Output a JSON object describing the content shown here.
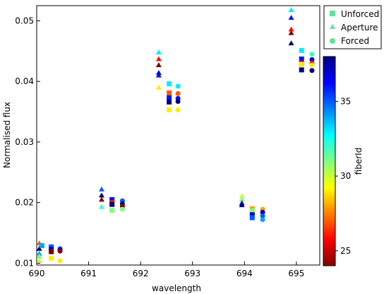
{
  "chart_data": {
    "type": "scatter",
    "xlabel": "wavelength",
    "ylabel": "Normalised flux",
    "xlim": [
      690.0,
      695.45
    ],
    "ylim": [
      0.0097,
      0.0525
    ],
    "xticks": [
      690,
      691,
      692,
      693,
      694,
      695
    ],
    "xtick_labels": [
      "690",
      "691",
      "692",
      "693",
      "694",
      "695"
    ],
    "yticks": [
      0.01,
      0.02,
      0.03,
      0.04,
      0.05
    ],
    "ytick_labels": [
      "0.01",
      "0.02",
      "0.03",
      "0.04",
      "0.05"
    ],
    "grid": false,
    "legend": {
      "placement": "top-right outside",
      "entries": [
        {
          "label": "Unforced",
          "marker": "square",
          "color": "#66e099"
        },
        {
          "label": "Aperture",
          "marker": "triangle",
          "color": "#66e099"
        },
        {
          "label": "Forced",
          "marker": "circle",
          "color": "#66e099"
        }
      ]
    },
    "colorbar": {
      "label": "fiberId",
      "range": [
        24,
        38
      ],
      "ticks": [
        25,
        30,
        35
      ],
      "tick_labels": [
        "25",
        "30",
        "35"
      ],
      "colormap": "jet"
    },
    "series": [
      {
        "name": "Aperture",
        "marker": "triangle",
        "points": [
          {
            "x": 690.05,
            "y": 0.0133,
            "fiberId": 27
          },
          {
            "x": 690.05,
            "y": 0.0124,
            "fiberId": 38
          },
          {
            "x": 690.05,
            "y": 0.0116,
            "fiberId": 34
          },
          {
            "x": 690.05,
            "y": 0.0111,
            "fiberId": 31
          },
          {
            "x": 690.05,
            "y": 0.0104,
            "fiberId": 30
          },
          {
            "x": 691.25,
            "y": 0.0222,
            "fiberId": 35
          },
          {
            "x": 691.25,
            "y": 0.0212,
            "fiberId": 38
          },
          {
            "x": 691.25,
            "y": 0.0205,
            "fiberId": 24
          },
          {
            "x": 691.25,
            "y": 0.0193,
            "fiberId": 32
          },
          {
            "x": 692.35,
            "y": 0.0448,
            "fiberId": 33
          },
          {
            "x": 692.35,
            "y": 0.0437,
            "fiberId": 26
          },
          {
            "x": 692.35,
            "y": 0.0427,
            "fiberId": 24
          },
          {
            "x": 692.35,
            "y": 0.0414,
            "fiberId": 37
          },
          {
            "x": 692.35,
            "y": 0.041,
            "fiberId": 36
          },
          {
            "x": 692.35,
            "y": 0.039,
            "fiberId": 29
          },
          {
            "x": 693.95,
            "y": 0.0211,
            "fiberId": 30
          },
          {
            "x": 693.95,
            "y": 0.0205,
            "fiberId": 31
          },
          {
            "x": 693.95,
            "y": 0.0199,
            "fiberId": 37
          },
          {
            "x": 693.95,
            "y": 0.0196,
            "fiberId": 38
          },
          {
            "x": 694.9,
            "y": 0.0518,
            "fiberId": 33
          },
          {
            "x": 694.9,
            "y": 0.0505,
            "fiberId": 36
          },
          {
            "x": 694.9,
            "y": 0.0486,
            "fiberId": 26
          },
          {
            "x": 694.9,
            "y": 0.048,
            "fiberId": 24
          },
          {
            "x": 694.9,
            "y": 0.0463,
            "fiberId": 38
          }
        ]
      },
      {
        "name": "Unforced",
        "marker": "square",
        "points": [
          {
            "x": 690.1,
            "y": 0.0129,
            "fiberId": 34
          },
          {
            "x": 690.28,
            "y": 0.0127,
            "fiberId": 35
          },
          {
            "x": 690.28,
            "y": 0.0123,
            "fiberId": 37
          },
          {
            "x": 690.28,
            "y": 0.0119,
            "fiberId": 24
          },
          {
            "x": 690.28,
            "y": 0.0108,
            "fiberId": 29
          },
          {
            "x": 691.45,
            "y": 0.0205,
            "fiberId": 36
          },
          {
            "x": 691.45,
            "y": 0.02,
            "fiberId": 26
          },
          {
            "x": 691.45,
            "y": 0.0197,
            "fiberId": 38
          },
          {
            "x": 691.45,
            "y": 0.0187,
            "fiberId": 31
          },
          {
            "x": 692.55,
            "y": 0.0396,
            "fiberId": 33
          },
          {
            "x": 692.55,
            "y": 0.0381,
            "fiberId": 27
          },
          {
            "x": 692.55,
            "y": 0.0373,
            "fiberId": 36
          },
          {
            "x": 692.55,
            "y": 0.0366,
            "fiberId": 38
          },
          {
            "x": 692.55,
            "y": 0.0353,
            "fiberId": 29
          },
          {
            "x": 694.15,
            "y": 0.019,
            "fiberId": 28
          },
          {
            "x": 694.15,
            "y": 0.0186,
            "fiberId": 31
          },
          {
            "x": 694.15,
            "y": 0.018,
            "fiberId": 37
          },
          {
            "x": 694.15,
            "y": 0.0175,
            "fiberId": 35
          },
          {
            "x": 695.1,
            "y": 0.0451,
            "fiberId": 33
          },
          {
            "x": 695.1,
            "y": 0.0437,
            "fiberId": 36
          },
          {
            "x": 695.1,
            "y": 0.043,
            "fiberId": 26
          },
          {
            "x": 695.1,
            "y": 0.0428,
            "fiberId": 29
          },
          {
            "x": 695.1,
            "y": 0.0419,
            "fiberId": 38
          }
        ]
      },
      {
        "name": "Forced",
        "marker": "circle",
        "points": [
          {
            "x": 690.45,
            "y": 0.0124,
            "fiberId": 35
          },
          {
            "x": 690.45,
            "y": 0.0122,
            "fiberId": 37
          },
          {
            "x": 690.45,
            "y": 0.012,
            "fiberId": 24
          },
          {
            "x": 690.45,
            "y": 0.0104,
            "fiberId": 29
          },
          {
            "x": 691.65,
            "y": 0.0203,
            "fiberId": 35
          },
          {
            "x": 691.65,
            "y": 0.0198,
            "fiberId": 38
          },
          {
            "x": 691.65,
            "y": 0.0194,
            "fiberId": 24
          },
          {
            "x": 691.65,
            "y": 0.0189,
            "fiberId": 31
          },
          {
            "x": 692.72,
            "y": 0.0392,
            "fiberId": 33
          },
          {
            "x": 692.72,
            "y": 0.038,
            "fiberId": 27
          },
          {
            "x": 692.72,
            "y": 0.0372,
            "fiberId": 36
          },
          {
            "x": 692.72,
            "y": 0.0367,
            "fiberId": 38
          },
          {
            "x": 692.72,
            "y": 0.0353,
            "fiberId": 29
          },
          {
            "x": 694.35,
            "y": 0.0189,
            "fiberId": 28
          },
          {
            "x": 694.35,
            "y": 0.0184,
            "fiberId": 37
          },
          {
            "x": 694.35,
            "y": 0.0178,
            "fiberId": 35
          },
          {
            "x": 694.35,
            "y": 0.0172,
            "fiberId": 34
          },
          {
            "x": 695.3,
            "y": 0.0445,
            "fiberId": 32
          },
          {
            "x": 695.3,
            "y": 0.0436,
            "fiberId": 37
          },
          {
            "x": 695.3,
            "y": 0.043,
            "fiberId": 26
          },
          {
            "x": 695.3,
            "y": 0.0427,
            "fiberId": 29
          },
          {
            "x": 695.3,
            "y": 0.0418,
            "fiberId": 38
          }
        ]
      }
    ]
  }
}
